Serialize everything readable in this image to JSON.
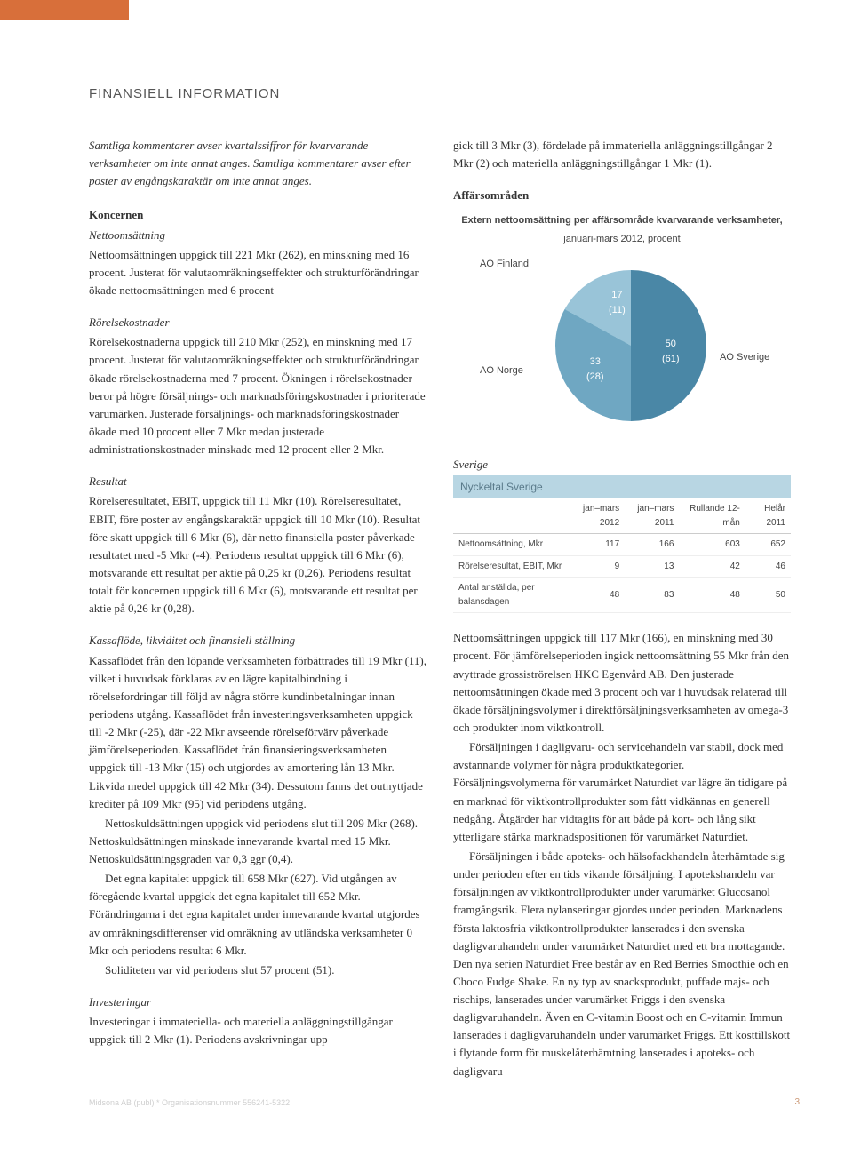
{
  "section_title": "FINANSIELL INFORMATION",
  "intro": "Samtliga kommentarer avser kvartalssiffror för kvarvarande verksamheter om inte annat anges. Samtliga kommentarer avser efter poster av engångskaraktär om inte annat anges.",
  "left": {
    "koncernen": "Koncernen",
    "netto_head": "Nettoomsättning",
    "netto_body": "Nettoomsättningen uppgick till 221 Mkr (262), en minskning med 16 procent. Justerat för valutaomräkningseffekter och strukturförändringar ökade nettoomsättningen med 6 procent",
    "rorelse_head": "Rörelsekostnader",
    "rorelse_body": "Rörelsekostnaderna uppgick till 210 Mkr (252), en minskning med 17 procent. Justerat för valutaomräkningseffekter och strukturförändringar ökade rörelsekostnaderna med 7 procent. Ökningen i rörelsekostnader beror på högre försäljnings- och marknadsföringskostnader i prioriterade varumärken. Justerade försäljnings- och marknadsföringskostnader ökade med 10 procent eller 7 Mkr medan justerade administrationskostnader minskade med 12 procent eller 2 Mkr.",
    "resultat_head": "Resultat",
    "resultat_body": "Rörelseresultatet, EBIT, uppgick till 11 Mkr (10). Rörelseresultatet, EBIT, före poster av engångskaraktär uppgick till 10 Mkr (10). Resultat före skatt uppgick till 6 Mkr (6), där netto finansiella poster påverkade resultatet med -5 Mkr (-4). Periodens resultat uppgick till 6 Mkr (6), motsvarande ett resultat per aktie på 0,25 kr (0,26). Periodens resultat totalt för koncernen uppgick till 6 Mkr (6), motsvarande ett resultat per aktie på 0,26 kr (0,28).",
    "kassa_head": "Kassaflöde, likviditet och finansiell ställning",
    "kassa_p1": "Kassaflödet från den löpande verksamheten förbättrades till 19 Mkr (11), vilket i huvudsak förklaras av en lägre kapitalbindning i rörelsefordringar till följd av några större kundinbetalningar innan periodens utgång. Kassaflödet från investeringsverksamheten uppgick till -2 Mkr (-25), där -22 Mkr avseende rörelseförvärv påverkade jämförelseperioden. Kassaflödet från finansieringsverksamheten uppgick till -13 Mkr (15) och utgjordes av amortering lån 13 Mkr. Likvida medel uppgick till 42 Mkr (34). Dessutom fanns det outnyttjade krediter på 109 Mkr (95) vid periodens utgång.",
    "kassa_p2": "Nettoskuldsättningen uppgick vid periodens slut till 209 Mkr (268). Nettoskuldsättningen minskade innevarande kvartal med 15 Mkr. Nettoskuldsättningsgraden var 0,3 ggr (0,4).",
    "kassa_p3": "Det egna kapitalet uppgick till 658 Mkr (627). Vid utgången av föregående kvartal uppgick det egna kapitalet till 652 Mkr. Förändringarna i det egna kapitalet under innevarande kvartal utgjordes av omräkningsdifferenser vid omräkning av utländska verksamheter 0 Mkr och periodens resultat 6 Mkr.",
    "kassa_p4": "Soliditeten var vid periodens slut 57 procent (51).",
    "invest_head": "Investeringar",
    "invest_body": "Investeringar i immateriella- och materiella anläggningstillgångar uppgick till 2 Mkr (1). Periodens avskrivningar upp"
  },
  "right": {
    "top_para": "gick till 3 Mkr (3), fördelade på immateriella anläggningstillgångar 2 Mkr (2) och materiella anläggningstillgångar 1 Mkr (1).",
    "affars_head": "Affärsområden",
    "chart": {
      "title": "Extern nettoomsättning per affärsområde kvarvarande verksamheter,",
      "subtitle": "januari-mars 2012, procent",
      "labels": {
        "finland": "AO Finland",
        "norge": "AO Norge",
        "sverige": "AO Sverige"
      },
      "values": {
        "finland": "17",
        "finland_prev": "(11)",
        "norge": "33",
        "norge_prev": "(28)",
        "sverige": "50",
        "sverige_prev": "(61)"
      },
      "colors": {
        "finland": "#99c4d8",
        "norge": "#6fa7c2",
        "sverige": "#4a87a6"
      },
      "slices": [
        {
          "pct": 50,
          "color": "#4a87a6"
        },
        {
          "pct": 33,
          "color": "#6fa7c2"
        },
        {
          "pct": 17,
          "color": "#99c4d8"
        }
      ]
    },
    "sverige_head": "Sverige",
    "table": {
      "caption": "Nyckeltal Sverige",
      "headers": [
        "",
        "jan–mars 2012",
        "jan–mars 2011",
        "Rullande 12-mån",
        "Helår 2011"
      ],
      "rows": [
        [
          "Nettoomsättning, Mkr",
          "117",
          "166",
          "603",
          "652"
        ],
        [
          "Rörelseresultat, EBIT, Mkr",
          "9",
          "13",
          "42",
          "46"
        ],
        [
          "Antal anställda, per balansdagen",
          "48",
          "83",
          "48",
          "50"
        ]
      ]
    },
    "sverige_p1": "Nettoomsättningen uppgick till 117 Mkr (166), en minskning med 30 procent. För jämförelseperioden ingick nettoomsättning 55 Mkr från den avyttrade grossiströrelsen HKC Egenvård AB. Den justerade nettoomsättningen ökade med 3 procent och var i huvudsak relaterad till ökade försäljningsvolymer i direktförsäljningsverksamheten av omega-3 och produkter inom viktkontroll.",
    "sverige_p2": "Försäljningen i dagligvaru- och servicehandeln var stabil, dock med avstannande volymer för några produktkategorier. Försäljningsvolymerna för varumärket Naturdiet var lägre än tidigare på en marknad för viktkontrollprodukter som fått vidkännas en generell nedgång. Åtgärder har vidtagits för att både på kort- och lång sikt ytterligare stärka marknadspositionen för varumärket Naturdiet.",
    "sverige_p3": "Försäljningen i både apoteks- och hälsofackhandeln återhämtade sig under perioden efter en tids vikande försäljning. I apotekshandeln var försäljningen av viktkontrollprodukter under varumärket Glucosanol framgångsrik. Flera nylanseringar gjordes under perioden. Marknadens första laktosfria viktkontrollprodukter lanserades i den svenska dagligvaruhandeln under varumärket Naturdiet med ett bra mottagande. Den nya serien Naturdiet Free består av en Red Berries Smoothie och en Choco Fudge Shake. En ny typ av snacksprodukt, puffade majs- och rischips, lanserades under varumärket Friggs i den svenska dagligvaruhandeln. Även en C-vitamin Boost och en C-vitamin Immun lanserades i dagligvaruhandeln under varumärket Friggs. Ett kosttillskott i flytande form för muskelåterhämtning lanserades i apoteks- och dagligvaru"
  },
  "footer": "Midsona AB (publ) * Organisationsnummer 556241-5322",
  "page_num": "3"
}
